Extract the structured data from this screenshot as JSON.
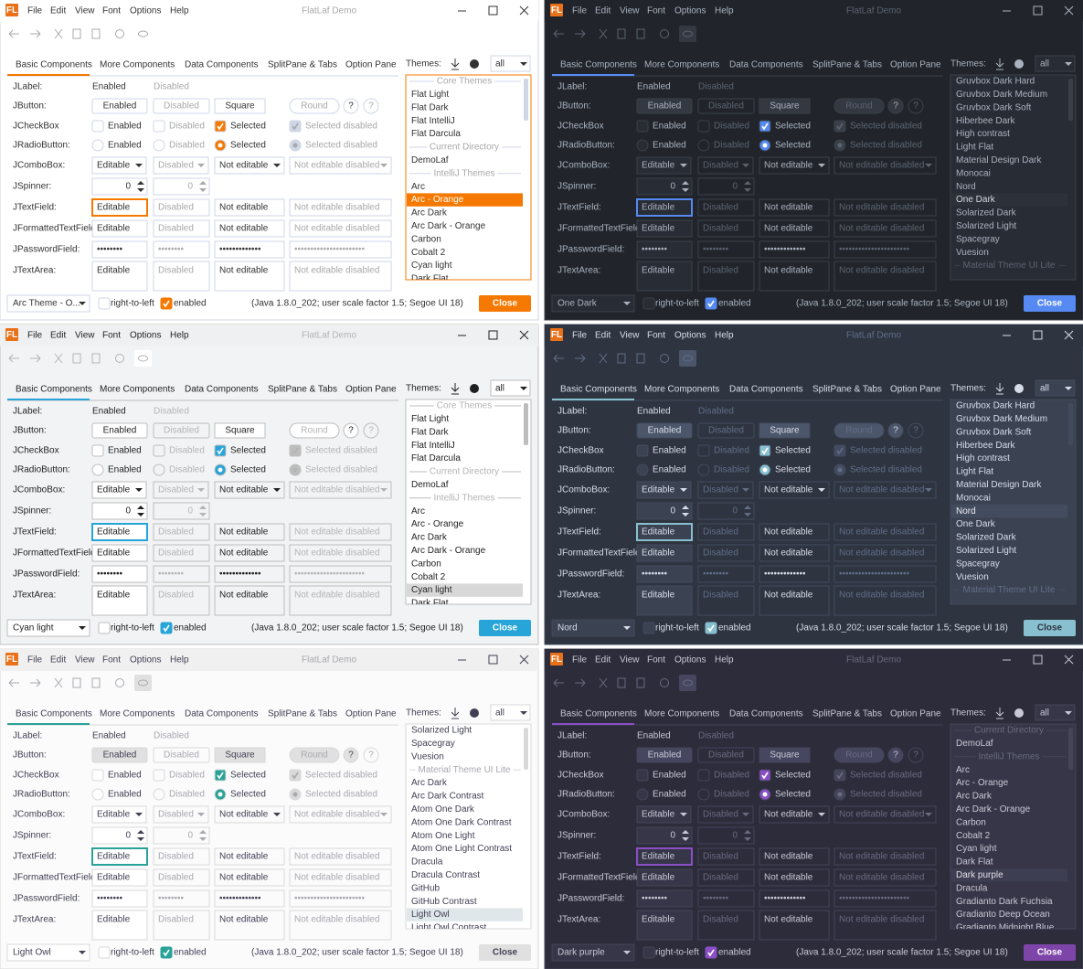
{
  "title": "FlatLaf Demo",
  "icon_text": "FL",
  "menu": [
    "File",
    "Edit",
    "View",
    "Font",
    "Options",
    "Help"
  ],
  "tabs": [
    "Basic Components",
    "More Components",
    "Data Components",
    "SplitPane & Tabs",
    "Option Pane"
  ],
  "themes_label": "Themes:",
  "filter": "all",
  "rows": [
    "JLabel:",
    "JButton:",
    "JCheckBox",
    "JRadioButton:",
    "JComboBox:",
    "JSpinner:",
    "JTextField:",
    "JFormattedTextField:",
    "JPasswordField:",
    "JTextArea:"
  ],
  "controls": {
    "jlabel": [
      "Enabled",
      "Disabled"
    ],
    "jbutton": [
      "Enabled",
      "Disabled",
      "Square",
      "Round"
    ],
    "help_button": "?",
    "jcheckbox": [
      "Enabled",
      "Disabled",
      "Selected",
      "Selected disabled"
    ],
    "jradiobutton": [
      "Enabled",
      "Disabled",
      "Selected",
      "Selected disabled"
    ],
    "jcombobox": [
      "Editable",
      "Disabled",
      "Not editable",
      "Not editable disabled"
    ],
    "jspinner": [
      0,
      0
    ],
    "jtextfield": [
      "Editable",
      "Disabled",
      "Not editable",
      "Not editable disabled"
    ],
    "jformattedtextfield": [
      "Editable",
      "Disabled",
      "Not editable",
      "Not editable disabled"
    ],
    "jpasswordfield": [
      "••••••••",
      "••••••••",
      "•••••••••••••",
      "••••••••••••••••••••••"
    ],
    "jtextarea": [
      "Editable",
      "Disabled",
      "Not editable",
      "Not editable disabled"
    ]
  },
  "footer": {
    "rtl": "right-to-left",
    "enabled": "enabled",
    "info": "(Java 1.8.0_202;  user scale factor 1.5; Segoe UI 18)",
    "close": "Close"
  },
  "windows": [
    {
      "theme": "Arc Theme - O...",
      "list": [
        "Core Themes",
        "Flat Light",
        "Flat Dark",
        "Flat IntelliJ",
        "Flat Darcula",
        "Current Directory",
        "DemoLaf",
        "IntelliJ Themes",
        "Arc",
        "Arc - Orange",
        "Arc Dark",
        "Arc Dark - Orange",
        "Carbon",
        "Cobalt 2",
        "Cyan light",
        "Dark Flat"
      ],
      "group_headers": [
        0,
        5,
        7
      ],
      "selected": 9,
      "colors": {
        "bg": "#ffffff",
        "bar": "#ffffff",
        "text": "#333333",
        "dim": "#a8a8a8",
        "field": "#ffffff",
        "border": "#cfd6e6",
        "accent": "#f57900",
        "button": "#ffffff",
        "close": "#f57900",
        "close_text": "#ffffff",
        "sel": "#f57900",
        "sel_text": "#ffffff"
      }
    },
    {
      "theme": "One Dark",
      "list": [
        "Gruvbox Dark Hard",
        "Gruvbox Dark Medium",
        "Gruvbox Dark Soft",
        "Hiberbee Dark",
        "High contrast",
        "Light Flat",
        "Material Design Dark",
        "Monocai",
        "Nord",
        "One Dark",
        "Solarized Dark",
        "Solarized Light",
        "Spacegray",
        "Vuesion",
        "Material Theme UI Lite"
      ],
      "group_headers": [
        14
      ],
      "selected": 9,
      "colors": {
        "bg": "#21252b",
        "bar": "#21252b",
        "text": "#abb2bf",
        "dim": "#5c6370",
        "field": "#282c34",
        "border": "#3b4048",
        "accent": "#568af2",
        "button": "#333841",
        "close": "#568af2",
        "close_text": "#ffffff",
        "sel": "#2c313a",
        "sel_text": "#d7dae0"
      }
    },
    {
      "theme": "Cyan light",
      "list": [
        "Core Themes",
        "Flat Light",
        "Flat Dark",
        "Flat IntelliJ",
        "Flat Darcula",
        "Current Directory",
        "DemoLaf",
        "IntelliJ Themes",
        "Arc",
        "Arc - Orange",
        "Arc Dark",
        "Arc Dark - Orange",
        "Carbon",
        "Cobalt 2",
        "Cyan light",
        "Dark Flat"
      ],
      "group_headers": [
        0,
        5,
        7
      ],
      "selected": 14,
      "colors": {
        "bg": "#f2f3f4",
        "bar": "#eef0f1",
        "text": "#1f1f1f",
        "dim": "#b4b4b4",
        "field": "#ffffff",
        "border": "#bdbdbd",
        "accent": "#27a4d8",
        "button": "#ffffff",
        "close": "#27a4d8",
        "close_text": "#ffffff",
        "sel": "#d8d8d8",
        "sel_text": "#1f1f1f"
      }
    },
    {
      "theme": "Nord",
      "list": [
        "Gruvbox Dark Hard",
        "Gruvbox Dark Medium",
        "Gruvbox Dark Soft",
        "Hiberbee Dark",
        "High contrast",
        "Light Flat",
        "Material Design Dark",
        "Monocai",
        "Nord",
        "One Dark",
        "Solarized Dark",
        "Solarized Light",
        "Spacegray",
        "Vuesion",
        "Material Theme UI Lite"
      ],
      "group_headers": [
        14
      ],
      "selected": 8,
      "colors": {
        "bg": "#2e3440",
        "bar": "#2e3440",
        "text": "#d8dee9",
        "dim": "#616e88",
        "field": "#3b4252",
        "border": "#434c5e",
        "accent": "#88c0d0",
        "button": "#4c566a",
        "close": "#88c0d0",
        "close_text": "#2e3440",
        "sel": "#434c5e",
        "sel_text": "#eceff4"
      }
    },
    {
      "theme": "Light Owl",
      "list": [
        "Solarized Light",
        "Spacegray",
        "Vuesion",
        "Material Theme UI Lite",
        "Arc Dark",
        "Arc Dark Contrast",
        "Atom One Dark",
        "Atom One Dark Contrast",
        "Atom One Light",
        "Atom One Light Contrast",
        "Dracula",
        "Dracula Contrast",
        "GitHub",
        "GitHub Contrast",
        "Light Owl",
        "Light Owl Contrast"
      ],
      "group_headers": [
        3
      ],
      "selected": 14,
      "colors": {
        "bg": "#fbfbfb",
        "bar": "#f0f0f0",
        "text": "#403f53",
        "dim": "#a8a8b0",
        "field": "#ffffff",
        "border": "#d9d9d9",
        "accent": "#2aa298",
        "button": "#e0e0e0",
        "close": "#e0e0e0",
        "close_text": "#403f53",
        "sel": "#e0e7ea",
        "sel_text": "#403f53"
      }
    },
    {
      "theme": "Dark purple",
      "list": [
        "Current Directory",
        "DemoLaf",
        "IntelliJ Themes",
        "Arc",
        "Arc - Orange",
        "Arc Dark",
        "Arc Dark - Orange",
        "Carbon",
        "Cobalt 2",
        "Cyan light",
        "Dark Flat",
        "Dark purple",
        "Dracula",
        "Gradianto Dark Fuchsia",
        "Gradianto Deep Ocean",
        "Gradianto Midnight Blue"
      ],
      "group_headers": [
        0,
        2
      ],
      "selected": 11,
      "colors": {
        "bg": "#2c2c3b",
        "bar": "#2c2c3b",
        "text": "#c8c8d6",
        "dim": "#6a6a80",
        "field": "#363648",
        "border": "#45455a",
        "accent": "#8a4fc7",
        "button": "#464660",
        "close": "#7e45a9",
        "close_text": "#ffffff",
        "sel": "#3e3e52",
        "sel_text": "#e0e0ea"
      }
    }
  ]
}
